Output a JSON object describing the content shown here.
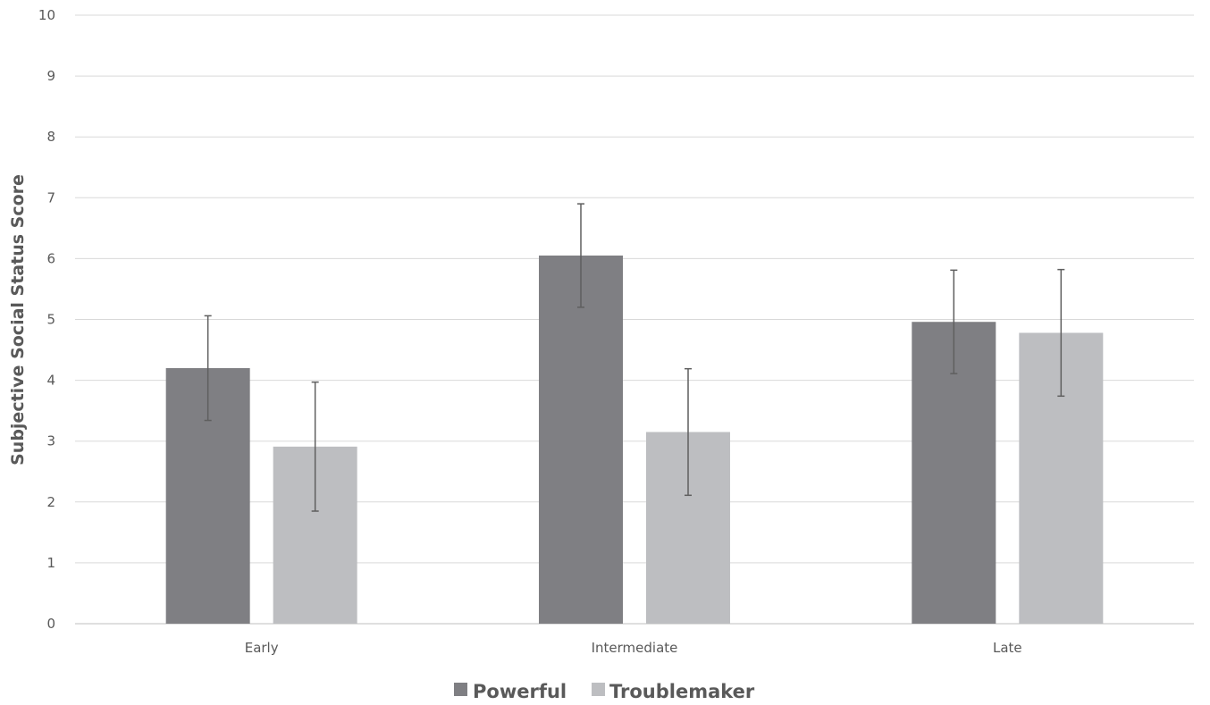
{
  "chart_data": {
    "type": "bar",
    "title": "",
    "xlabel": "",
    "ylabel": "Subjective Social Status Score",
    "ylim": [
      0,
      10
    ],
    "yticks": [
      "0",
      "1",
      "2",
      "3",
      "4",
      "5",
      "6",
      "7",
      "8",
      "9",
      "10"
    ],
    "grid": true,
    "legend_position": "bottom",
    "categories": [
      "Early",
      "Intermediate",
      "Late"
    ],
    "series": [
      {
        "name": "Powerful",
        "color": "#7f7f83",
        "values": [
          4.2,
          6.05,
          4.96
        ],
        "error": [
          0.86,
          0.85,
          0.85
        ]
      },
      {
        "name": "Troublemaker",
        "color": "#bdbec1",
        "values": [
          2.91,
          3.15,
          4.78
        ],
        "error": [
          1.06,
          1.04,
          1.04
        ]
      }
    ]
  }
}
